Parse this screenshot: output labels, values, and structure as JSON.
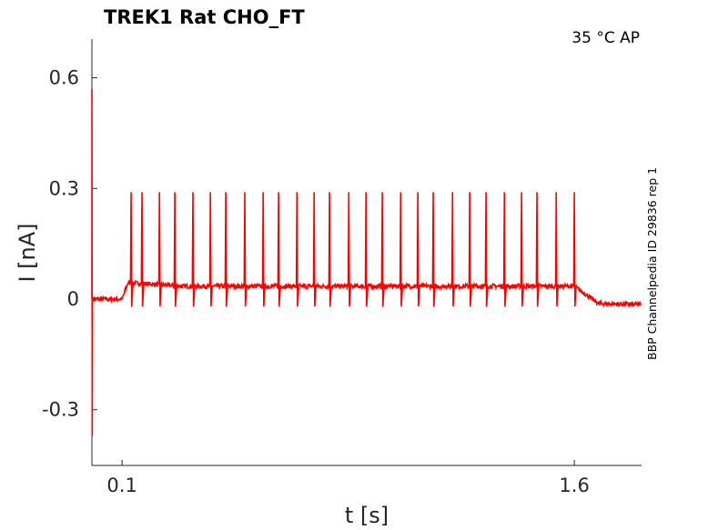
{
  "chart_data": {
    "type": "line",
    "title": "TREK1  Rat  CHO_FT",
    "annotation": "35 °C  AP",
    "side_label": "BBP Channelpedia ID 29836 rep 1",
    "xlabel": "t [s]",
    "ylabel": "I [nA]",
    "xlim": [
      0.0,
      1.823
    ],
    "ylim": [
      -0.451,
      0.705
    ],
    "xticks": [
      0.1,
      1.6
    ],
    "xtick_labels": [
      "0.1",
      "1.6"
    ],
    "yticks": [
      0.6,
      0.3,
      0,
      -0.3
    ],
    "ytick_labels": [
      "0.6",
      "0.3",
      "0",
      "-0.3"
    ],
    "grid": false,
    "color": "#ff0000",
    "baseline": [
      [
        0.0,
        0.0
      ],
      [
        0.1,
        0.0
      ],
      [
        0.12,
        0.045
      ],
      [
        0.3,
        0.035
      ],
      [
        1.6,
        0.035
      ],
      [
        1.68,
        -0.012
      ],
      [
        1.823,
        -0.015
      ]
    ],
    "initial_transient": {
      "t": 0.0,
      "max": 0.57,
      "min": -0.37
    },
    "spikes": {
      "times": [
        0.13,
        0.166,
        0.224,
        0.275,
        0.335,
        0.393,
        0.444,
        0.507,
        0.568,
        0.619,
        0.68,
        0.737,
        0.788,
        0.852,
        0.909,
        0.963,
        1.024,
        1.081,
        1.132,
        1.196,
        1.253,
        1.307,
        1.368,
        1.425,
        1.476,
        1.54,
        1.6
      ],
      "peak": 0.29,
      "trough": -0.02
    }
  }
}
